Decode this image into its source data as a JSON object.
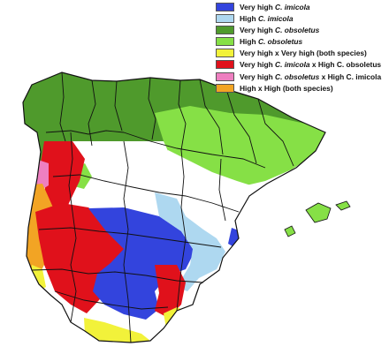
{
  "colors": {
    "very_high_imicola": "#3344dd",
    "high_imicola": "#aed8f0",
    "very_high_obsoletus": "#4f9a2c",
    "high_obsoletus": "#86e046",
    "both_very_high": "#f2f23a",
    "vh_imicola_x_h_obsoletus": "#e0111b",
    "vh_obsoletus_x_h_imicola": "#ee7fc0",
    "both_high": "#f2a424",
    "land": "#ffffff",
    "borders": "#111111"
  },
  "legend": [
    {
      "pre": "Very high ",
      "species": "C. imicola",
      "post": "",
      "color_key": "very_high_imicola"
    },
    {
      "pre": "High ",
      "species": "C. imicola",
      "post": "",
      "color_key": "high_imicola"
    },
    {
      "pre": "Very high ",
      "species": "C. obsoletus",
      "post": "",
      "color_key": "very_high_obsoletus"
    },
    {
      "pre": "High ",
      "species": "C. obsoletus",
      "post": "",
      "color_key": "high_obsoletus"
    },
    {
      "pre": "Very high x Very high (both species)",
      "species": "",
      "post": "",
      "color_key": "both_very_high"
    },
    {
      "pre": "Very high ",
      "species": "C. imicola",
      "post": " x High C. obsoletus",
      "color_key": "vh_imicola_x_h_obsoletus"
    },
    {
      "pre": "Very high ",
      "species": "C. obsoletus",
      "post": " x High C. imicola",
      "color_key": "vh_obsoletus_x_h_imicola"
    },
    {
      "pre": "High x High (both species)",
      "species": "",
      "post": "",
      "color_key": "both_high"
    }
  ]
}
